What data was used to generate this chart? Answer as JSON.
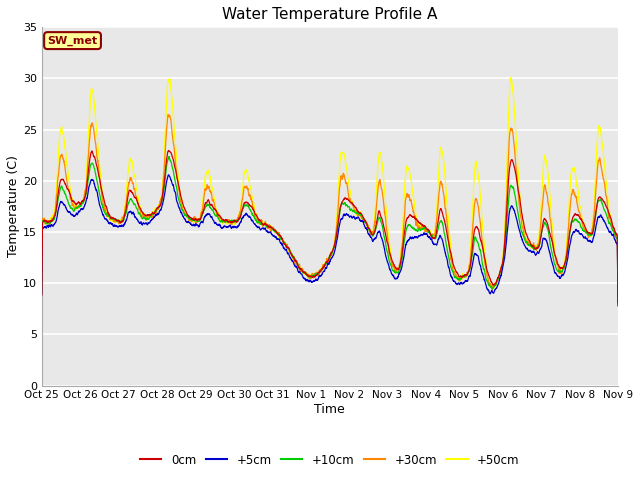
{
  "title": "Water Temperature Profile A",
  "xlabel": "Time",
  "ylabel": "Temperature (C)",
  "ylim": [
    0,
    35
  ],
  "background_color": "#e8e8e8",
  "grid_color": "white",
  "annotation_text": "SW_met",
  "annotation_fgcolor": "#8b0000",
  "annotation_bgcolor": "#ffff99",
  "annotation_edgecolor": "#8b0000",
  "series_colors": {
    "0cm": "#cc0000",
    "+5cm": "#0000cc",
    "+10cm": "#00cc00",
    "+30cm": "#ff8800",
    "+50cm": "#ffff00"
  },
  "xtick_labels": [
    "Oct 25",
    "Oct 26",
    "Oct 27",
    "Oct 28",
    "Oct 29",
    "Oct 30",
    "Oct 31",
    "Nov 1",
    "Nov 2",
    "Nov 3",
    "Nov 4",
    "Nov 5",
    "Nov 6",
    "Nov 7",
    "Nov 8",
    "Nov 9"
  ],
  "ytick_labels": [
    "0",
    "5",
    "10",
    "15",
    "20",
    "25",
    "30",
    "35"
  ],
  "ytick_vals": [
    0,
    5,
    10,
    15,
    20,
    25,
    30,
    35
  ],
  "num_points": 3000,
  "figsize": [
    6.4,
    4.8
  ],
  "dpi": 100
}
